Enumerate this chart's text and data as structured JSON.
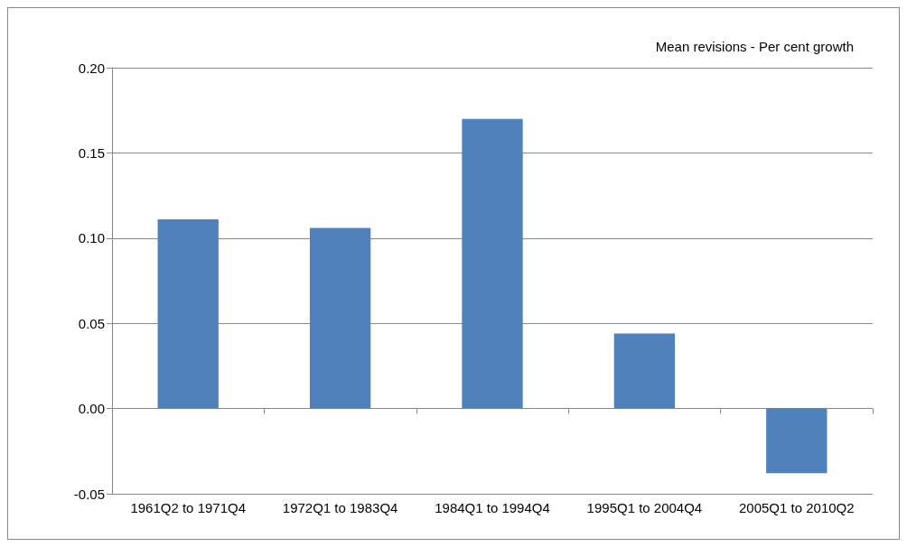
{
  "chart_data": {
    "type": "bar",
    "title": "Mean revisions - Per cent growth",
    "categories": [
      "1961Q2 to 1971Q4",
      "1972Q1 to 1983Q4",
      "1984Q1 to 1994Q4",
      "1995Q1 to 2004Q4",
      "2005Q1 to 2010Q2"
    ],
    "values": [
      0.111,
      0.106,
      0.17,
      0.044,
      -0.038
    ],
    "color": "#4f81bd",
    "ylim": [
      -0.05,
      0.2
    ],
    "yticks": [
      {
        "value": -0.05,
        "label": "-0.05"
      },
      {
        "value": 0,
        "label": "0.00"
      },
      {
        "value": 0.05,
        "label": "0.05"
      },
      {
        "value": 0.1,
        "label": "0.10"
      },
      {
        "value": 0.15,
        "label": "0.15"
      },
      {
        "value": 0.2,
        "label": "0.20"
      }
    ],
    "grid": "y"
  }
}
